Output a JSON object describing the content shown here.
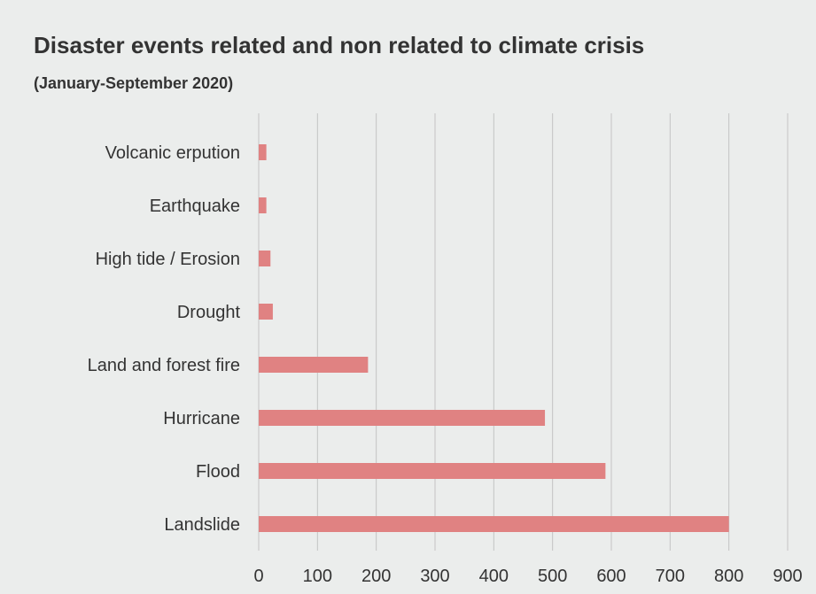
{
  "chart_data": {
    "type": "bar",
    "orientation": "horizontal",
    "title": "Disaster events related and non related to climate crisis",
    "subtitle": "(January-September 2020)",
    "categories": [
      "Landslide",
      "Flood",
      "Hurricane",
      "Land and forest fire",
      "Drought",
      "High tide / Erosion",
      "Earthquake",
      "Volcanic erpution"
    ],
    "values": [
      800,
      590,
      487,
      186,
      24,
      20,
      13,
      13
    ],
    "xlim": [
      0,
      900
    ],
    "xticks": [
      "0",
      "100",
      "200",
      "300",
      "400",
      "500",
      "600",
      "700",
      "800",
      "900"
    ],
    "grid": "vertical",
    "bar_color": "#e08282"
  }
}
